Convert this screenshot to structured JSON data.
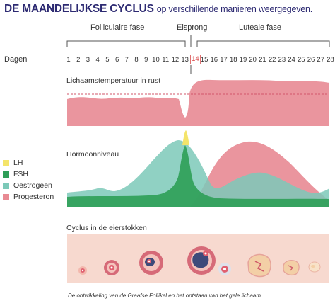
{
  "header": {
    "title": "DE MAANDELIJKSE CYCLUS",
    "subtitle": "op verschillende manieren weergegeven."
  },
  "phases": {
    "follicular": "Folliculaire fase",
    "ovulation": "Eisprong",
    "luteal": "Luteale fase"
  },
  "days": {
    "label": "Dagen",
    "values": [
      "1",
      "2",
      "3",
      "4",
      "5",
      "6",
      "7",
      "8",
      "9",
      "10",
      "11",
      "12",
      "13",
      "14",
      "15",
      "16",
      "17",
      "18",
      "19",
      "20",
      "21",
      "22",
      "23",
      "24",
      "25",
      "26",
      "27",
      "28"
    ],
    "highlight": "14"
  },
  "temperature": {
    "label": "Lichaamstemperatuur in rust",
    "color": "#e88a93"
  },
  "hormones": {
    "label": "Hormoonniveau",
    "legend": [
      {
        "name": "LH",
        "color": "#f4e46a"
      },
      {
        "name": "FSH",
        "color": "#2e9e57"
      },
      {
        "name": "Oestrogeen",
        "color": "#7cc9b8"
      },
      {
        "name": "Progesteron",
        "color": "#e88a93"
      }
    ]
  },
  "ovary": {
    "label": "Cyclus in de eierstokken",
    "background": "#f7d9cf",
    "caption": "De ontwikkeling van de Graafse Follikel en het ontstaan van het gele lichaam"
  }
}
